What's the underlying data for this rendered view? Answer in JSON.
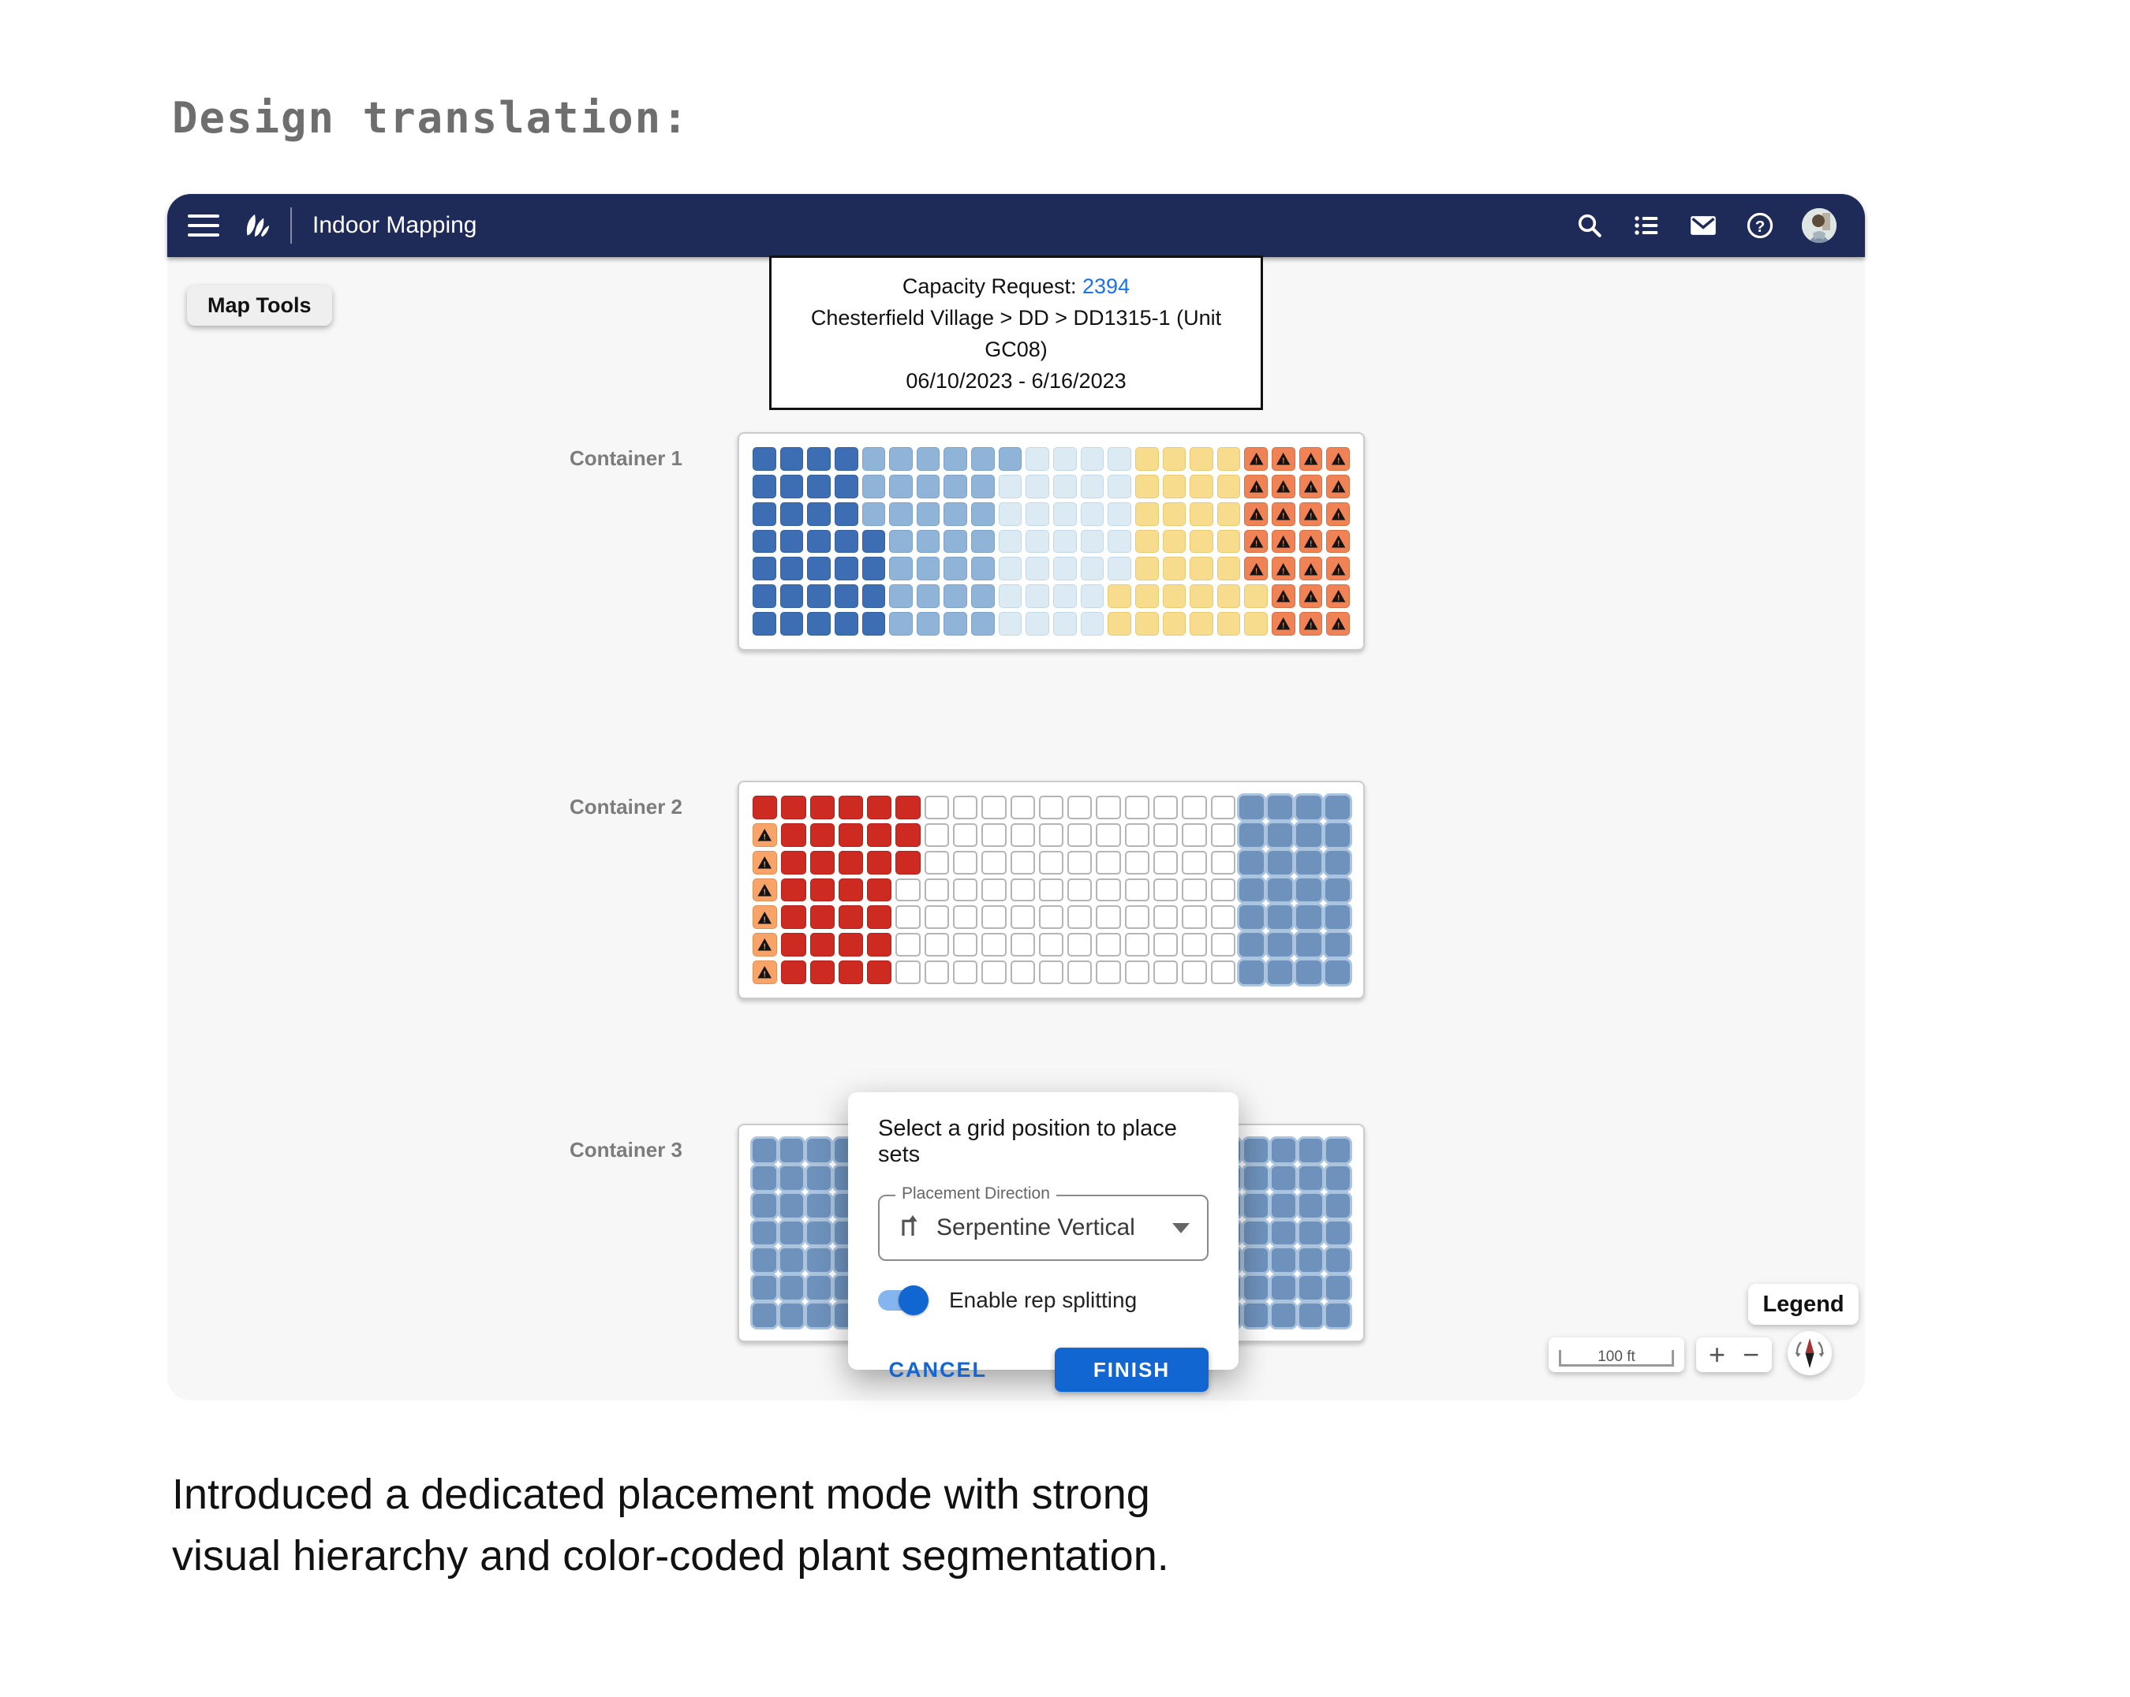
{
  "page": {
    "heading": "Design translation:",
    "caption_lines": [
      "Introduced a dedicated placement mode with strong",
      "visual hierarchy and color-coded plant segmentation."
    ]
  },
  "appbar": {
    "title": "Indoor Mapping"
  },
  "map_tools_label": "Map Tools",
  "info_box": {
    "line1_label": "Capacity Request: ",
    "line1_value": "2394",
    "line2": "Chesterfield Village > DD > DD1315-1 (Unit GC08)",
    "line3": "06/10/2023 - 6/16/2023"
  },
  "containers": [
    {
      "label": "Container 1",
      "rows": [
        "DDDDMMMMMMLLLLYYYYOOOO",
        "DDDDMMMMMLLLLLYYYYOOOO",
        "DDDDMMMMMLLLLLYYYYOOOO",
        "DDDDDMMMMLLLLLYYYYOOOO",
        "DDDDDMMMMLLLLLYYYYOOOO",
        "DDDDDMMMMLLLLYYYYYYOOO",
        "DDDDDMMMMLLLLYYYYYYOOO"
      ]
    },
    {
      "label": "Container 2",
      "rows": [
        "RRRRRR...........SSSS",
        "ARRRRR...........SSSS",
        "ARRRRR...........SSSS",
        "ARRRR............SSSS",
        "ARRRR............SSSS",
        "ARRRR............SSSS",
        "ARRRR............SSSS"
      ]
    },
    {
      "label": "Container 3",
      "rows": [
        "SSSSSSSSSSSSSSSSSSSSSS",
        "SSSSSSSSSSSSSSSSSSSSSS",
        "SSSSSSSSSSSSSSSSSSSSSS",
        "SSSSSSSSSSSSSSSSSSSSSS",
        "SSSSSSSSSSSSSSSSSSSSSS",
        "SSSSSSSSSSSSSSSSSSSSSS",
        "SSSSSSSSSSSSSSSSSSSSSS"
      ]
    }
  ],
  "cell_colors": {
    "D": "#3d6db3",
    "M": "#8fb4d8",
    "L": "#dceaf3",
    "Y": "#f8dc8e",
    "O": "#ef8355",
    "A": "#f8a468",
    "R": "#cd2a22",
    "S": "#6e92bc",
    "S_backdrop": "#aac3de",
    "empty_border": "#b5b5b5"
  },
  "modal": {
    "title": "Select a grid position to place sets",
    "direction_label": "Placement Direction",
    "direction_value": "Serpentine Vertical",
    "toggle_label": "Enable rep splitting",
    "toggle_on": true,
    "cancel_label": "CANCEL",
    "finish_label": "FINISH"
  },
  "map_controls": {
    "legend_label": "Legend",
    "scale_label": "100 ft",
    "zoom_in": "+",
    "zoom_out": "−"
  },
  "colors": {
    "appbar_navy": "#1e2b58",
    "link_blue": "#1a73e8",
    "accent_blue": "#1266d1"
  }
}
